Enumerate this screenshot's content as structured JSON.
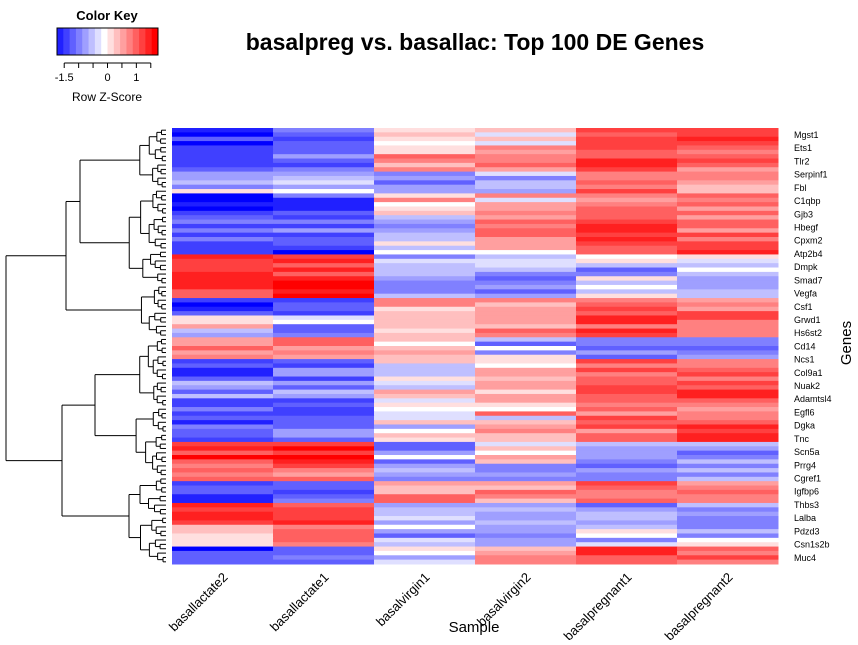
{
  "chart_data": {
    "type": "heatmap",
    "title": "basalpreg vs. basallac: Top 100 DE Genes",
    "xlabel": "Sample",
    "ylabel": "Genes",
    "columns": [
      "basallactate2",
      "basallactate1",
      "basalvirgin1",
      "basalvirgin2",
      "basalpregnant1",
      "basalpregnant2"
    ],
    "row_count": 100,
    "labeled_genes": [
      "Mgst1",
      "Ets1",
      "Tlr2",
      "Serpinf1",
      "Fbl",
      "C1qbp",
      "Gjb3",
      "Hbegf",
      "Cpxm2",
      "Atp2b4",
      "Dmpk",
      "Smad7",
      "Vegfa",
      "Csf1",
      "Grwd1",
      "Hs6st2",
      "Cd14",
      "Ncs1",
      "Col9a1",
      "Nuak2",
      "Adamtsl4",
      "Egfl6",
      "Dgka",
      "Tnc",
      "Scn5a",
      "Prrg4",
      "Cgref1",
      "Igfbp6",
      "Thbs3",
      "Lalba",
      "Pdzd3",
      "Csn1s2b",
      "Muc4"
    ],
    "z_ranges": [
      [
        -1.5,
        -1.1,
        0.15,
        0.3,
        1.3,
        1.3
      ],
      [
        -1.45,
        -1.05,
        0.4,
        0.9,
        1.35,
        1.1
      ],
      [
        -0.5,
        -0.2,
        -0.8,
        -0.1,
        0.9,
        0.7
      ],
      [
        -1.6,
        -1.3,
        0.3,
        0.4,
        1.0,
        1.0
      ],
      [
        -1.1,
        -1.0,
        -0.6,
        0.9,
        1.3,
        0.9
      ],
      [
        -1.1,
        -1.3,
        0.0,
        0.4,
        1.3,
        1.1
      ],
      [
        1.5,
        1.3,
        -0.6,
        -0.6,
        -0.5,
        -0.4
      ],
      [
        1.4,
        1.5,
        -0.7,
        -0.8,
        -0.3,
        -0.6
      ],
      [
        -1.5,
        -1.2,
        0.3,
        0.8,
        1.2,
        1.0
      ],
      [
        0.0,
        -0.4,
        0.6,
        0.8,
        1.2,
        1.0
      ],
      [
        0.9,
        0.9,
        0.0,
        -0.4,
        -0.9,
        -0.8
      ],
      [
        -1.4,
        -1.0,
        0.3,
        0.4,
        1.1,
        1.1
      ],
      [
        -0.5,
        -0.7,
        0.0,
        0.3,
        1.2,
        1.3
      ],
      [
        -1.2,
        -1.3,
        0.3,
        0.3,
        1.0,
        1.0
      ],
      [
        -1.1,
        -0.9,
        0.0,
        0.7,
        0.9,
        1.2
      ],
      [
        1.4,
        1.6,
        -0.5,
        0.0,
        -0.6,
        -0.8
      ],
      [
        1.0,
        0.9,
        -0.6,
        -0.7,
        -0.8,
        -0.7
      ],
      [
        -1.3,
        -1.1,
        0.7,
        0.7,
        1.0,
        1.1
      ],
      [
        1.3,
        1.3,
        -0.6,
        -0.6,
        -0.8,
        -0.7
      ],
      [
        0.6,
        0.9,
        -0.5,
        -0.6,
        -0.2,
        -0.4
      ],
      [
        -1.4,
        -1.0,
        0.1,
        0.6,
        1.2,
        1.2
      ]
    ],
    "legend": {
      "title": "Color Key",
      "label": "Row Z-Score",
      "ticks": [
        "-1.5",
        "-1",
        "-0.5",
        "0",
        "0.5",
        "1",
        "1.5"
      ],
      "tick_labels": [
        "-1.5",
        "0",
        "1"
      ],
      "range": [
        -1.75,
        1.75
      ],
      "colors": {
        "low": "#0000ff",
        "mid": "#ffffff",
        "high": "#ff0000"
      }
    }
  }
}
